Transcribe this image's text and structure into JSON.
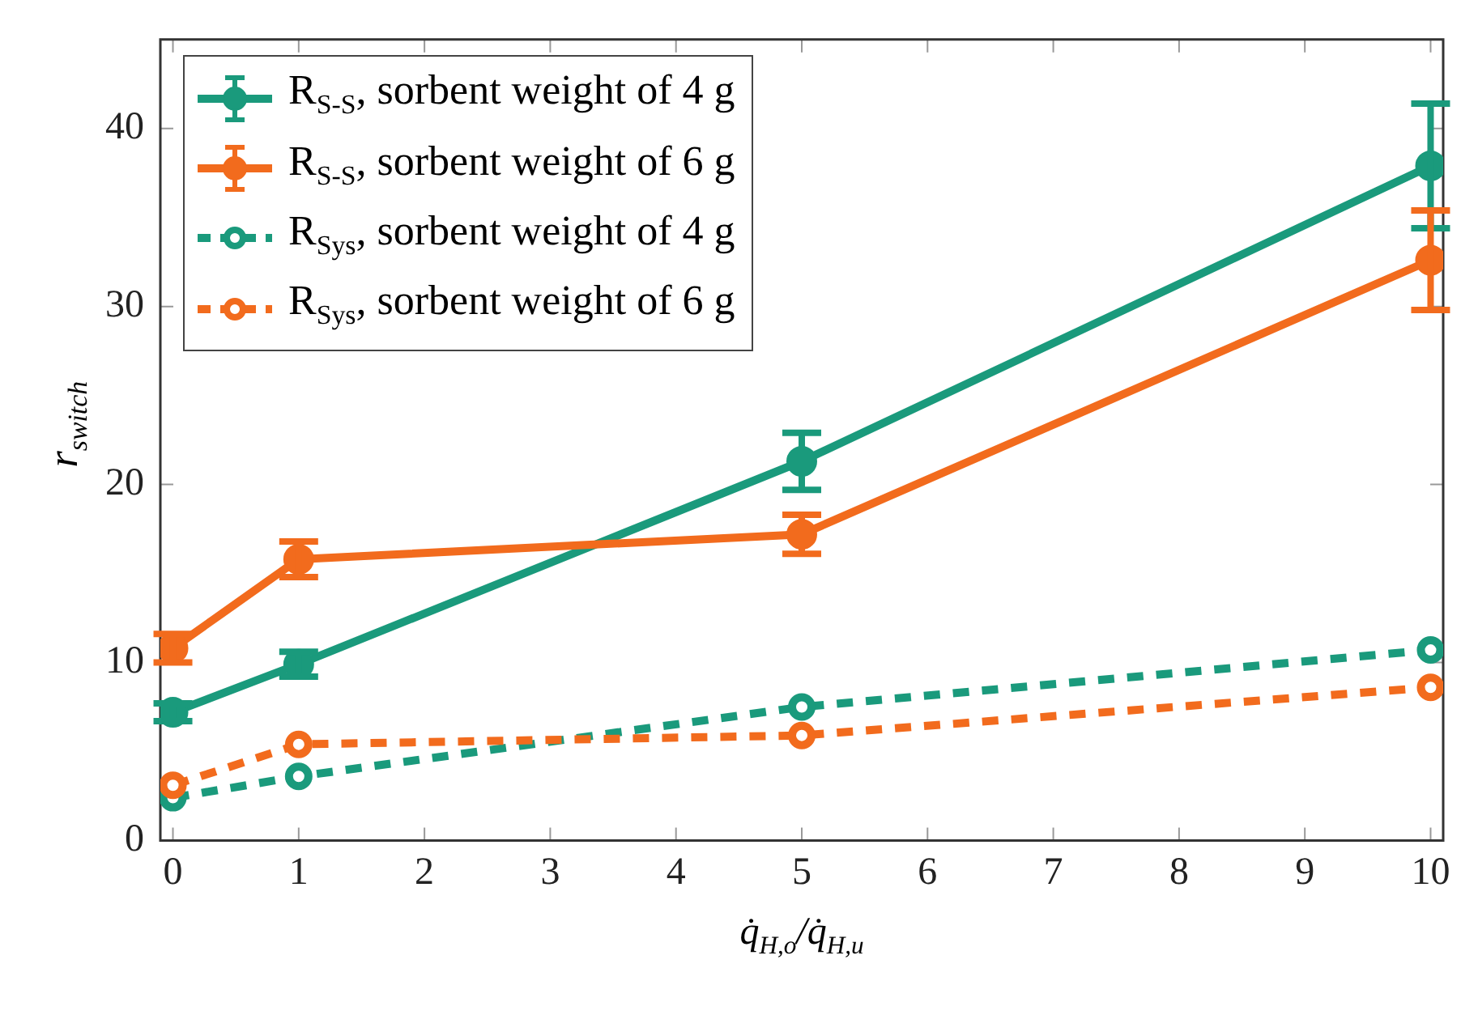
{
  "chart_data": {
    "type": "line",
    "xlabel": "q̇$_{H,o}$/q̇$_{H,u}$",
    "ylabel": "r$_{switch}$",
    "xlim": [
      -0.1,
      10.1
    ],
    "xticks": [
      0,
      1,
      2,
      3,
      4,
      5,
      6,
      7,
      8,
      9,
      10
    ],
    "ylim": [
      0,
      45
    ],
    "yticks": [
      0,
      10,
      20,
      30,
      40
    ],
    "x": [
      0,
      1,
      5,
      10
    ],
    "grid": false,
    "legend": "top left",
    "marker": "circle",
    "series": [
      {
        "name": "R$_{S-S}$, sorbent weight of 4 g",
        "color": "#1a9a7c",
        "values": [
          7.2,
          9.9,
          21.3,
          37.9
        ],
        "errors": [
          0.5,
          0.7,
          1.6,
          3.5
        ],
        "line_style": "solid"
      },
      {
        "name": "R$_{S-S}$, sorbent weight of 6 g",
        "color": "#f26b1d",
        "values": [
          10.8,
          15.8,
          17.2,
          32.6
        ],
        "errors": [
          0.8,
          1.0,
          1.1,
          2.8
        ],
        "line_style": "solid"
      },
      {
        "name": "R$_{Sys}$, sorbent weight of 4 g",
        "color": "#1a9a7c",
        "values": [
          2.4,
          3.6,
          7.5,
          10.7
        ],
        "line_style": "dashed"
      },
      {
        "name": "R$_{Sys}$, sorbent weight of 6 g",
        "color": "#f26b1d",
        "values": [
          3.1,
          5.4,
          5.9,
          8.6
        ],
        "line_style": "dashed"
      }
    ]
  }
}
